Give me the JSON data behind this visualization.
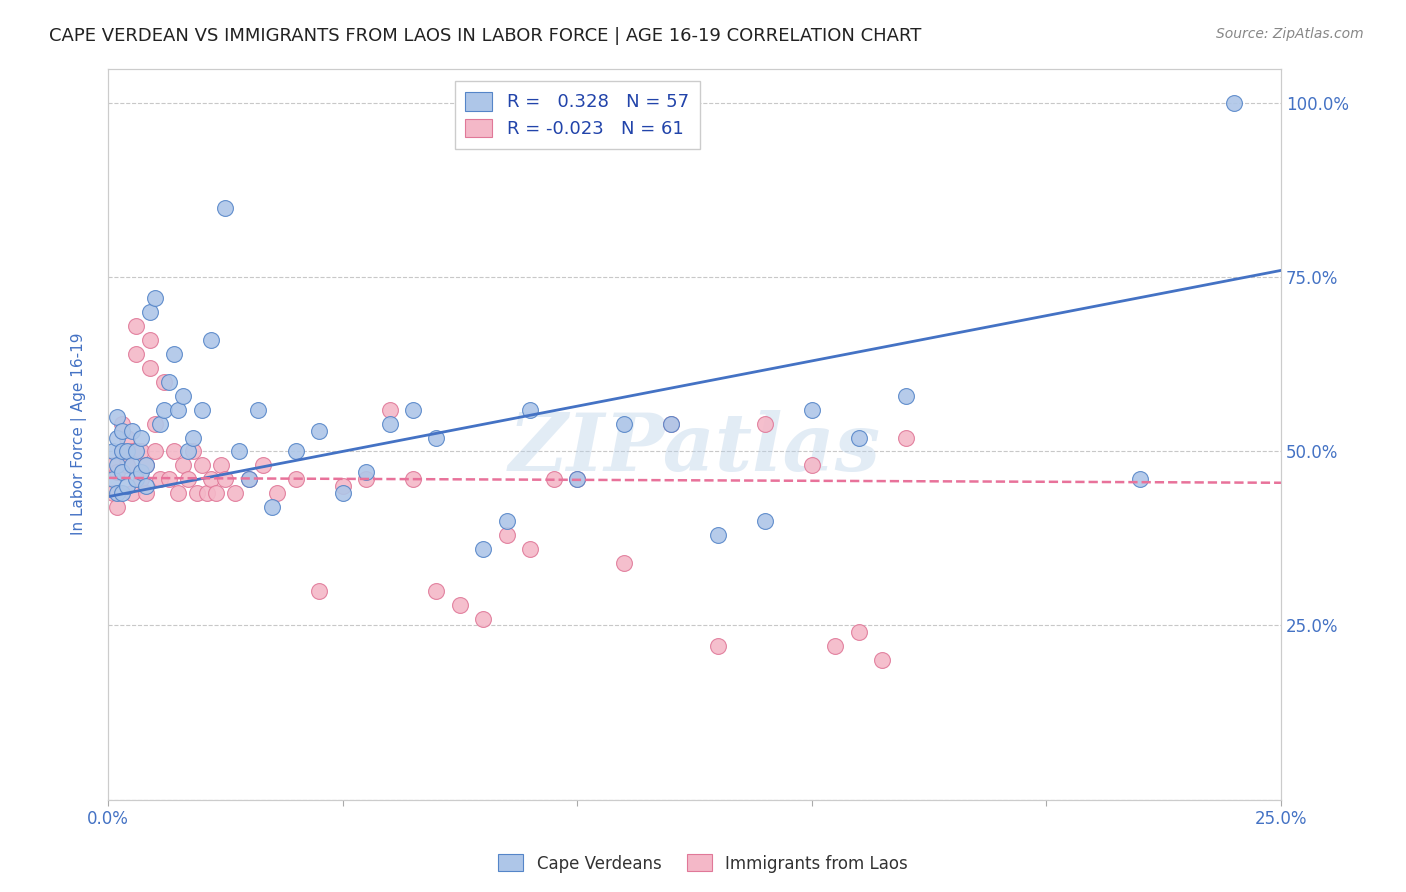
{
  "title": "CAPE VERDEAN VS IMMIGRANTS FROM LAOS IN LABOR FORCE | AGE 16-19 CORRELATION CHART",
  "source": "Source: ZipAtlas.com",
  "ylabel": "In Labor Force | Age 16-19",
  "xlim": [
    0.0,
    0.25
  ],
  "ylim": [
    0.0,
    1.05
  ],
  "blue_R": 0.328,
  "blue_N": 57,
  "pink_R": -0.023,
  "pink_N": 61,
  "blue_color": "#aec6e8",
  "pink_color": "#f4b8c8",
  "blue_edge_color": "#5585C8",
  "pink_edge_color": "#E07898",
  "blue_line_color": "#4472C4",
  "pink_line_color": "#E8729A",
  "legend_label_blue": "Cape Verdeans",
  "legend_label_pink": "Immigrants from Laos",
  "watermark": "ZIPatlas",
  "blue_scatter_x": [
    0.001,
    0.001,
    0.002,
    0.002,
    0.002,
    0.002,
    0.003,
    0.003,
    0.003,
    0.003,
    0.004,
    0.004,
    0.005,
    0.005,
    0.006,
    0.006,
    0.007,
    0.007,
    0.008,
    0.008,
    0.009,
    0.01,
    0.011,
    0.012,
    0.013,
    0.014,
    0.015,
    0.016,
    0.017,
    0.018,
    0.02,
    0.022,
    0.025,
    0.028,
    0.03,
    0.032,
    0.035,
    0.04,
    0.045,
    0.05,
    0.055,
    0.06,
    0.065,
    0.07,
    0.08,
    0.085,
    0.09,
    0.1,
    0.11,
    0.12,
    0.13,
    0.14,
    0.15,
    0.16,
    0.17,
    0.22,
    0.24
  ],
  "blue_scatter_y": [
    0.46,
    0.5,
    0.44,
    0.48,
    0.52,
    0.55,
    0.44,
    0.47,
    0.5,
    0.53,
    0.45,
    0.5,
    0.48,
    0.53,
    0.46,
    0.5,
    0.47,
    0.52,
    0.45,
    0.48,
    0.7,
    0.72,
    0.54,
    0.56,
    0.6,
    0.64,
    0.56,
    0.58,
    0.5,
    0.52,
    0.56,
    0.66,
    0.85,
    0.5,
    0.46,
    0.56,
    0.42,
    0.5,
    0.53,
    0.44,
    0.47,
    0.54,
    0.56,
    0.52,
    0.36,
    0.4,
    0.56,
    0.46,
    0.54,
    0.54,
    0.38,
    0.4,
    0.56,
    0.52,
    0.58,
    0.46,
    1.0
  ],
  "pink_scatter_x": [
    0.001,
    0.001,
    0.002,
    0.002,
    0.003,
    0.003,
    0.004,
    0.004,
    0.005,
    0.005,
    0.006,
    0.006,
    0.007,
    0.007,
    0.008,
    0.008,
    0.009,
    0.009,
    0.01,
    0.01,
    0.011,
    0.012,
    0.013,
    0.014,
    0.015,
    0.016,
    0.017,
    0.018,
    0.019,
    0.02,
    0.021,
    0.022,
    0.023,
    0.024,
    0.025,
    0.027,
    0.03,
    0.033,
    0.036,
    0.04,
    0.045,
    0.05,
    0.055,
    0.06,
    0.065,
    0.07,
    0.075,
    0.08,
    0.085,
    0.09,
    0.095,
    0.1,
    0.11,
    0.12,
    0.13,
    0.14,
    0.15,
    0.155,
    0.16,
    0.165,
    0.17
  ],
  "pink_scatter_y": [
    0.44,
    0.48,
    0.42,
    0.47,
    0.5,
    0.54,
    0.48,
    0.52,
    0.44,
    0.5,
    0.64,
    0.68,
    0.46,
    0.5,
    0.44,
    0.48,
    0.62,
    0.66,
    0.5,
    0.54,
    0.46,
    0.6,
    0.46,
    0.5,
    0.44,
    0.48,
    0.46,
    0.5,
    0.44,
    0.48,
    0.44,
    0.46,
    0.44,
    0.48,
    0.46,
    0.44,
    0.46,
    0.48,
    0.44,
    0.46,
    0.3,
    0.45,
    0.46,
    0.56,
    0.46,
    0.3,
    0.28,
    0.26,
    0.38,
    0.36,
    0.46,
    0.46,
    0.34,
    0.54,
    0.22,
    0.54,
    0.48,
    0.22,
    0.24,
    0.2,
    0.52
  ],
  "blue_line_x0": 0.0,
  "blue_line_y0": 0.435,
  "blue_line_x1": 0.25,
  "blue_line_y1": 0.76,
  "pink_line_x0": 0.0,
  "pink_line_y0": 0.462,
  "pink_line_x1": 0.25,
  "pink_line_y1": 0.455,
  "title_color": "#222222",
  "title_fontsize": 13,
  "tick_label_color": "#4472C4",
  "grid_color": "#c8c8c8",
  "background_color": "#ffffff"
}
